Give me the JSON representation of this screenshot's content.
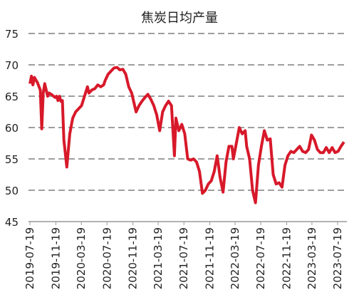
{
  "chart_data": {
    "type": "line",
    "title": "焦炭日均产量",
    "x": [
      "2019-07-19",
      "2019-07-26",
      "2019-08-02",
      "2019-08-09",
      "2019-08-23",
      "2019-09-06",
      "2019-09-13",
      "2019-09-20",
      "2019-09-27",
      "2019-10-11",
      "2019-10-18",
      "2019-11-01",
      "2019-11-15",
      "2019-11-22",
      "2019-11-29",
      "2019-12-06",
      "2019-12-13",
      "2019-12-20",
      "2019-12-27",
      "2020-01-10",
      "2020-01-24",
      "2020-02-07",
      "2020-02-21",
      "2020-03-06",
      "2020-03-20",
      "2020-04-03",
      "2020-04-17",
      "2020-04-24",
      "2020-05-08",
      "2020-05-22",
      "2020-06-05",
      "2020-06-19",
      "2020-07-03",
      "2020-07-10",
      "2020-07-24",
      "2020-08-07",
      "2020-08-21",
      "2020-09-04",
      "2020-09-18",
      "2020-10-02",
      "2020-10-16",
      "2020-10-30",
      "2020-11-13",
      "2020-11-27",
      "2020-12-04",
      "2020-12-18",
      "2021-01-01",
      "2021-01-15",
      "2021-01-29",
      "2021-02-12",
      "2021-02-26",
      "2021-03-12",
      "2021-03-26",
      "2021-04-09",
      "2021-04-23",
      "2021-05-07",
      "2021-05-21",
      "2021-06-04",
      "2021-06-11",
      "2021-06-25",
      "2021-07-09",
      "2021-07-23",
      "2021-08-06",
      "2021-08-20",
      "2021-09-03",
      "2021-09-17",
      "2021-10-01",
      "2021-10-15",
      "2021-10-29",
      "2021-11-12",
      "2021-11-26",
      "2021-12-10",
      "2021-12-24",
      "2022-01-07",
      "2022-01-21",
      "2022-02-04",
      "2022-02-18",
      "2022-03-04",
      "2022-03-11",
      "2022-03-25",
      "2022-04-08",
      "2022-04-22",
      "2022-05-06",
      "2022-05-13",
      "2022-05-27",
      "2022-06-10",
      "2022-06-24",
      "2022-07-08",
      "2022-07-22",
      "2022-08-05",
      "2022-08-19",
      "2022-09-02",
      "2022-09-16",
      "2022-09-30",
      "2022-10-14",
      "2022-10-28",
      "2022-11-11",
      "2022-11-25",
      "2022-12-09",
      "2022-12-23",
      "2023-01-06",
      "2023-01-20",
      "2023-02-03",
      "2023-02-17",
      "2023-03-03",
      "2023-03-17",
      "2023-03-31",
      "2023-04-14",
      "2023-04-28",
      "2023-05-12",
      "2023-05-26",
      "2023-06-09",
      "2023-06-23",
      "2023-07-07",
      "2023-07-21",
      "2023-08-04",
      "2023-08-18"
    ],
    "series": [
      {
        "name": "焦炭日均产量",
        "color": "#d7192a",
        "values": [
          67,
          68.2,
          66.8,
          68,
          67.2,
          66,
          59.8,
          65.5,
          67,
          65,
          65.5,
          65.2,
          64.8,
          65,
          64.3,
          65,
          64.2,
          64.3,
          58,
          53.7,
          59,
          61.5,
          62.5,
          63,
          63.5,
          65,
          66.5,
          65.5,
          66,
          66.2,
          66.8,
          66.5,
          66.8,
          67.5,
          68.5,
          69,
          69.5,
          69.6,
          69.2,
          69.3,
          68.5,
          66.5,
          65.5,
          63.5,
          62.5,
          63.5,
          64.2,
          64.8,
          65.3,
          64.5,
          63.5,
          62,
          59.5,
          62.5,
          63.5,
          64.2,
          63.5,
          55.5,
          61.5,
          59.5,
          60.5,
          59,
          55,
          54.8,
          55,
          54.5,
          53,
          49.5,
          50,
          51,
          51.5,
          53,
          55.5,
          52,
          49.7,
          54.5,
          57,
          57,
          55,
          57.5,
          60,
          59,
          59.5,
          57,
          55,
          50,
          48,
          54,
          57,
          59.5,
          58,
          58.2,
          52.5,
          51,
          51.2,
          50.5,
          54,
          55.5,
          56.2,
          56,
          56.5,
          57,
          56.2,
          56,
          56.5,
          58.8,
          58,
          56.5,
          56,
          56,
          56.8,
          56,
          56.8,
          56,
          56.2,
          57,
          57.7
        ]
      }
    ],
    "xlim": [
      "2019-07-12",
      "2023-09-01"
    ],
    "xticks": [
      "2019-07-19",
      "2019-11-19",
      "2020-03-19",
      "2020-07-19",
      "2020-11-19",
      "2021-03-19",
      "2021-07-19",
      "2021-11-19",
      "2022-03-19",
      "2022-07-19",
      "2022-11-19",
      "2023-03-19",
      "2023-07-19"
    ],
    "ylim": [
      45,
      75
    ],
    "yticks": [
      45,
      50,
      55,
      60,
      65,
      70,
      75
    ],
    "grid": true
  }
}
